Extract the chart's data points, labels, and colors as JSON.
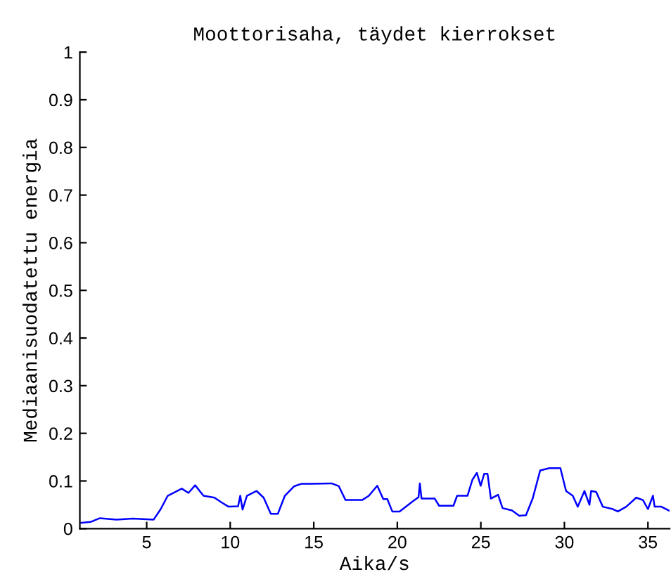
{
  "chart_data": {
    "type": "line",
    "title": "Moottorisaha, täydet kierrokset",
    "xlabel": "Aika/s",
    "ylabel": "Mediaanisuodatettu energia",
    "xlim": [
      1,
      36.3
    ],
    "ylim": [
      0,
      1
    ],
    "xticks": [
      5,
      10,
      15,
      20,
      25,
      30,
      35
    ],
    "yticks": [
      0,
      0.1,
      0.2,
      0.3,
      0.4,
      0.5,
      0.6,
      0.7,
      0.8,
      0.9,
      1
    ],
    "grid": false,
    "series": [
      {
        "color": "#0000ff",
        "x": [
          1.0,
          1.64,
          2.2,
          3.2,
          4.16,
          5.42,
          5.84,
          6.26,
          7.1,
          7.5,
          7.9,
          8.4,
          9.06,
          9.48,
          9.9,
          10.47,
          10.6,
          10.74,
          11.0,
          11.58,
          12.0,
          12.43,
          12.85,
          13.27,
          13.83,
          14.25,
          14.81,
          16.07,
          16.5,
          16.9,
          17.9,
          18.3,
          18.8,
          19.16,
          19.4,
          19.7,
          20.14,
          20.84,
          21.27,
          21.35,
          21.45,
          22.24,
          22.5,
          23.36,
          23.58,
          24.2,
          24.5,
          24.76,
          24.99,
          25.2,
          25.4,
          25.6,
          26.03,
          26.3,
          26.87,
          27.3,
          27.7,
          28.1,
          28.55,
          29.1,
          29.76,
          30.1,
          30.5,
          30.8,
          31.2,
          31.5,
          31.6,
          31.9,
          32.3,
          32.9,
          33.2,
          33.7,
          34.3,
          34.7,
          35.0,
          35.3,
          35.4,
          35.8,
          36.25
        ],
        "values": [
          0.012,
          0.014,
          0.022,
          0.019,
          0.021,
          0.019,
          0.041,
          0.069,
          0.084,
          0.075,
          0.091,
          0.069,
          0.065,
          0.055,
          0.046,
          0.047,
          0.069,
          0.04,
          0.069,
          0.079,
          0.065,
          0.031,
          0.031,
          0.069,
          0.089,
          0.094,
          0.094,
          0.095,
          0.089,
          0.06,
          0.06,
          0.069,
          0.09,
          0.062,
          0.062,
          0.036,
          0.036,
          0.055,
          0.066,
          0.095,
          0.063,
          0.063,
          0.048,
          0.048,
          0.069,
          0.069,
          0.103,
          0.117,
          0.09,
          0.115,
          0.115,
          0.063,
          0.071,
          0.043,
          0.038,
          0.027,
          0.028,
          0.063,
          0.122,
          0.127,
          0.127,
          0.079,
          0.069,
          0.046,
          0.079,
          0.05,
          0.079,
          0.077,
          0.046,
          0.041,
          0.036,
          0.046,
          0.065,
          0.06,
          0.041,
          0.069,
          0.046,
          0.046,
          0.038
        ]
      }
    ]
  }
}
